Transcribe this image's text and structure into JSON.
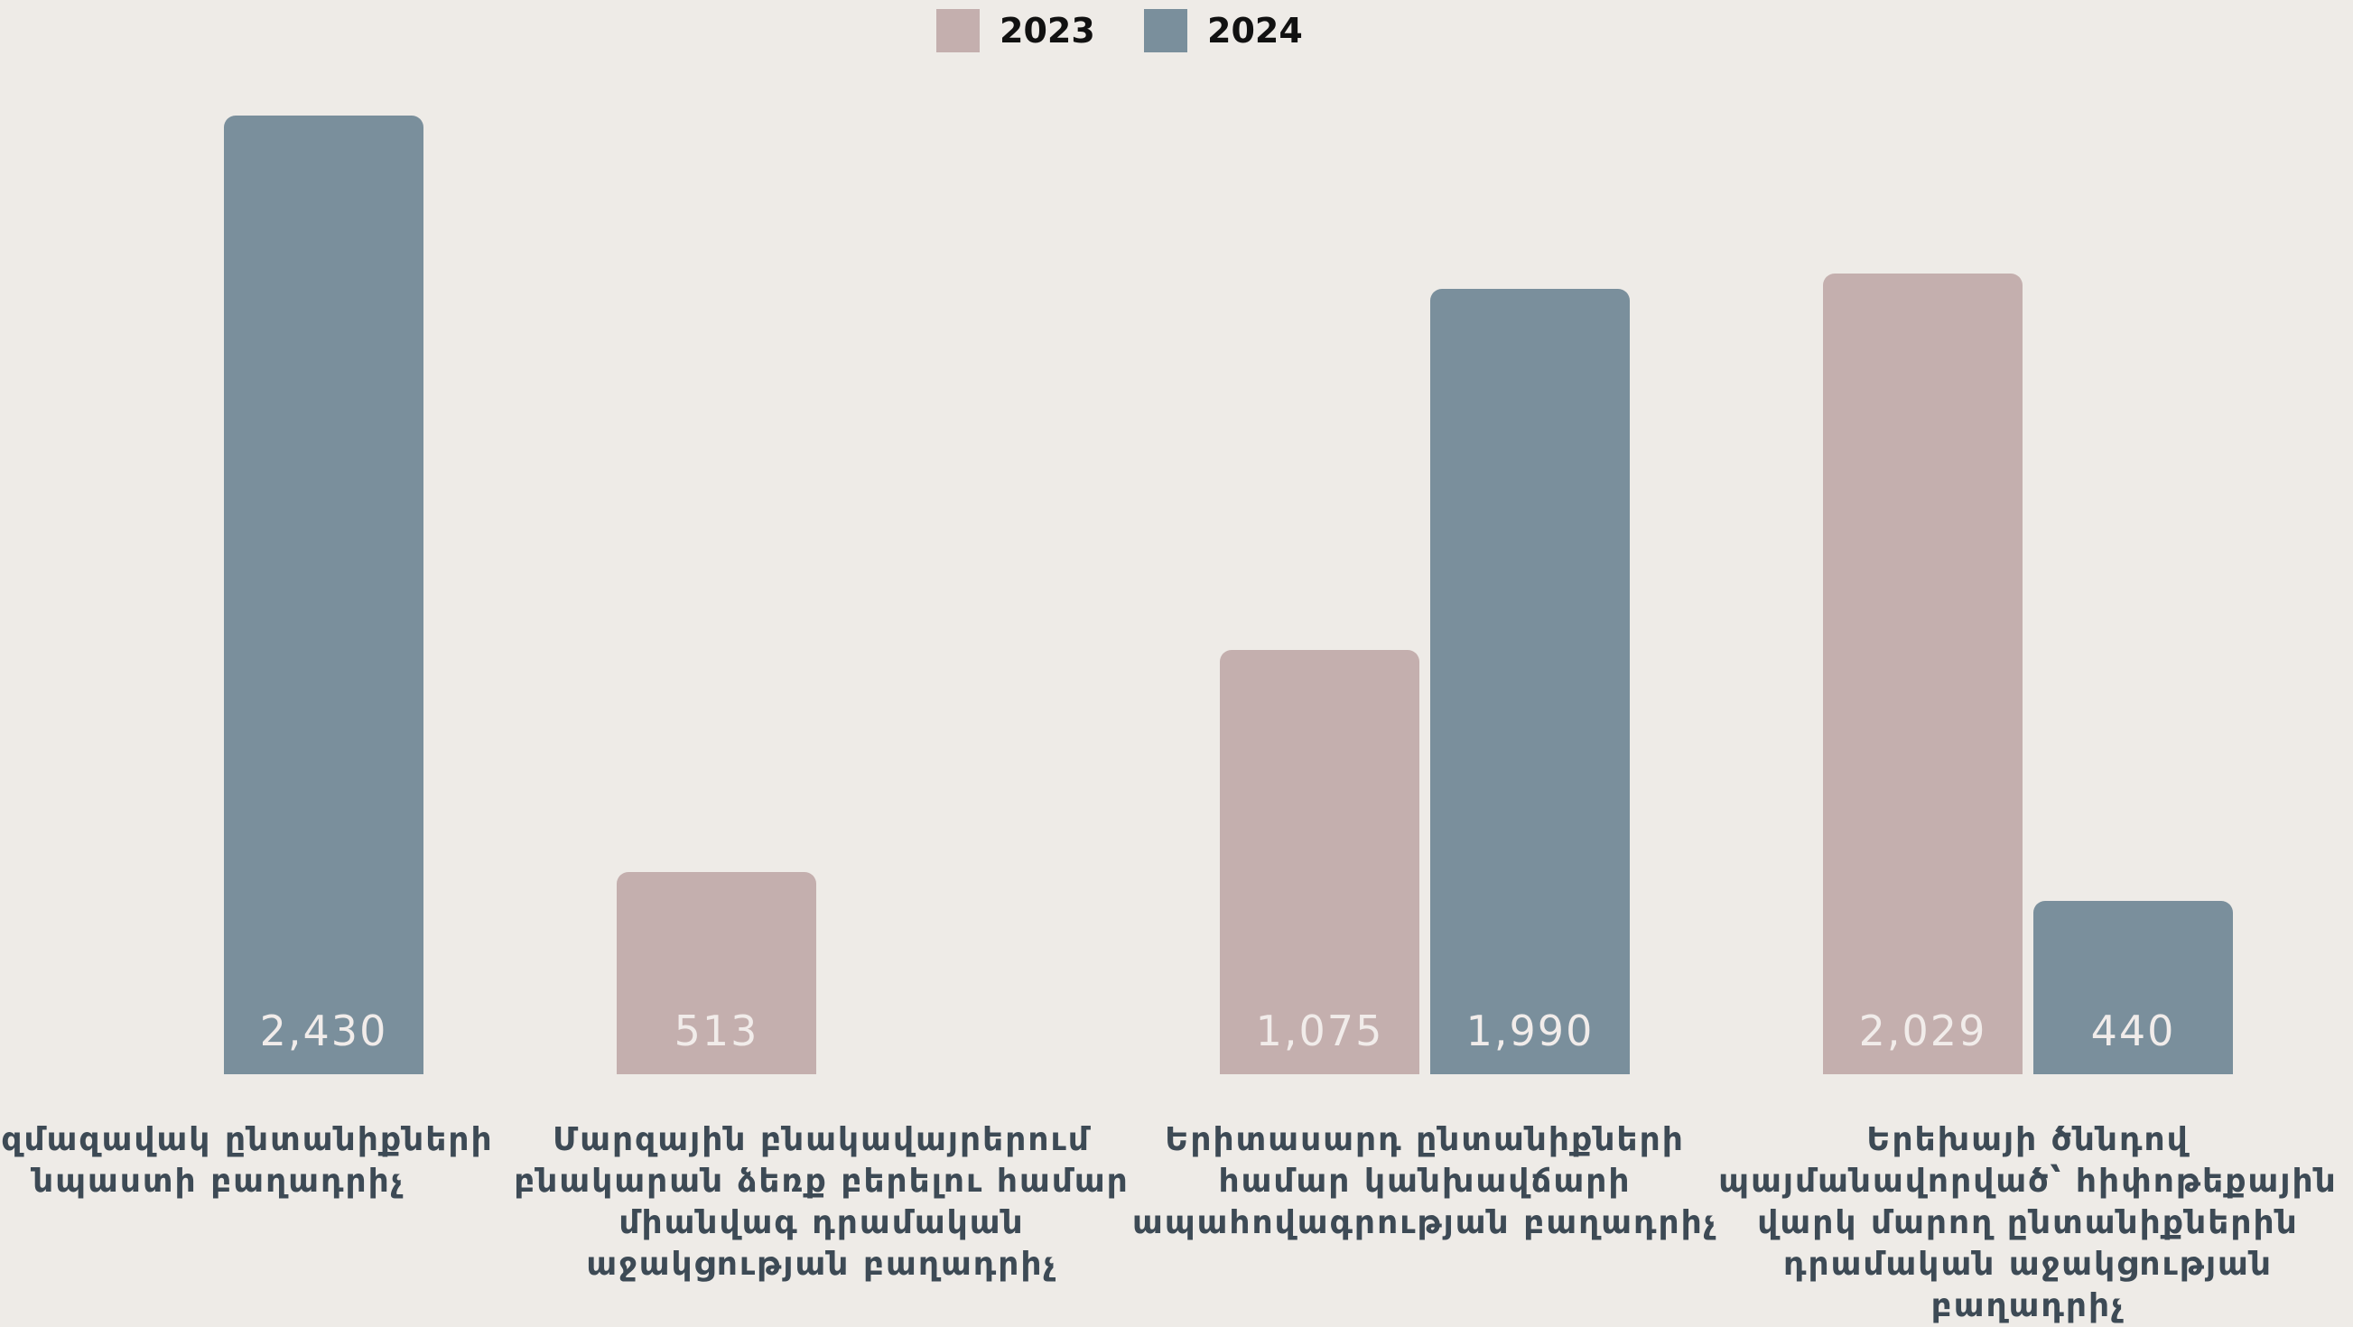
{
  "chart_data": {
    "type": "bar",
    "categories": [
      "Բազմազավակ ընտանիքների նպաստի բաղադրիչ",
      "Մարզային բնակավայրերում բնակարան ձեռք բերելու համար միանվագ դրամական աջակցության բաղադրիչ",
      "Երիտասարդ ընտանիքների համար կանխավճարի ապահովագրության բաղադրիչ",
      "Երեխայի ծննդով պայմանավորված՝ հիփոթեքային վարկ մարող ընտանիքներին դրամական աջակցության բաղադրիչ"
    ],
    "series": [
      {
        "name": "2023",
        "color": "#c4afae",
        "values": [
          null,
          513,
          1075,
          2029
        ],
        "value_labels": [
          null,
          "513",
          "1,075",
          "2,029"
        ]
      },
      {
        "name": "2024",
        "color": "#7a8f9c",
        "values": [
          2430,
          null,
          1990,
          440
        ],
        "value_labels": [
          "2,430",
          null,
          "1,990",
          "440"
        ]
      }
    ],
    "legend": "top"
  }
}
